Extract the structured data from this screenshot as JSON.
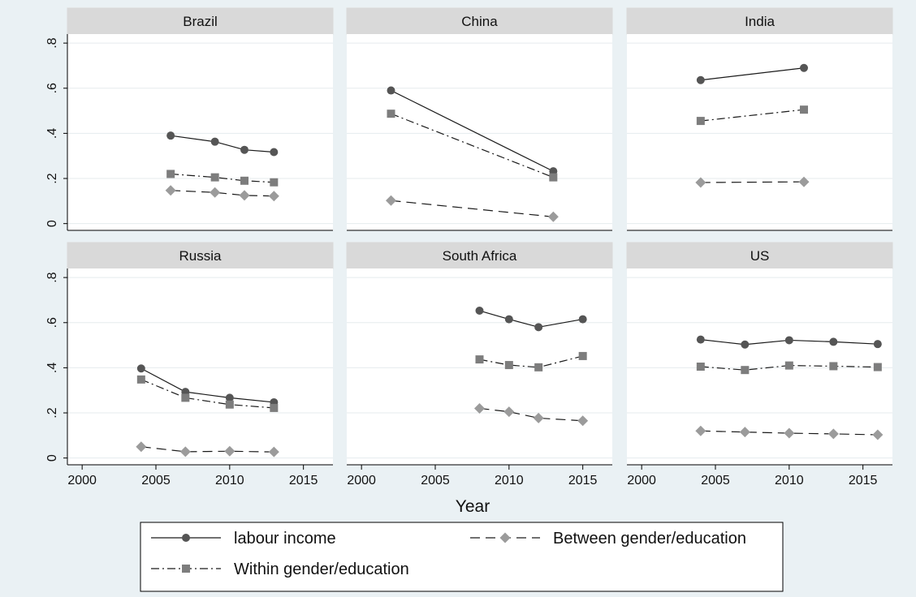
{
  "chart_data": {
    "type": "line",
    "xlabel": "Year",
    "ylabel": "",
    "xlim": [
      1999,
      2017
    ],
    "ylim": [
      -0.03,
      0.84
    ],
    "xticks": [
      "2000",
      "2005",
      "2010",
      "2015"
    ],
    "yticks": [
      "0",
      ".2",
      ".4",
      ".6",
      ".8"
    ],
    "grid": true,
    "legend_position": "bottom",
    "legend": [
      {
        "series": "labour",
        "label": "labour income"
      },
      {
        "series": "between",
        "label": "Between gender/education"
      },
      {
        "series": "within",
        "label": "Within gender/education"
      }
    ],
    "styles": {
      "labour": {
        "color": "#555555",
        "dash": "",
        "marker": "circle"
      },
      "within": {
        "color": "#7d7d7d",
        "dash": "10,4,2,4",
        "marker": "square"
      },
      "between": {
        "color": "#9b9b9b",
        "dash": "12,7",
        "marker": "diamond"
      }
    },
    "panels": [
      {
        "title": "Brazil",
        "series": [
          {
            "key": "labour",
            "x": [
              2006,
              2009,
              2011,
              2013
            ],
            "values": [
              0.39,
              0.363,
              0.327,
              0.317
            ]
          },
          {
            "key": "within",
            "x": [
              2006,
              2009,
              2011,
              2013
            ],
            "values": [
              0.22,
              0.205,
              0.19,
              0.183
            ]
          },
          {
            "key": "between",
            "x": [
              2006,
              2009,
              2011,
              2013
            ],
            "values": [
              0.147,
              0.138,
              0.125,
              0.122
            ]
          }
        ]
      },
      {
        "title": "China",
        "series": [
          {
            "key": "labour",
            "x": [
              2002,
              2013
            ],
            "values": [
              0.59,
              0.232
            ]
          },
          {
            "key": "within",
            "x": [
              2002,
              2013
            ],
            "values": [
              0.487,
              0.205
            ]
          },
          {
            "key": "between",
            "x": [
              2002,
              2013
            ],
            "values": [
              0.102,
              0.03
            ]
          }
        ]
      },
      {
        "title": "India",
        "series": [
          {
            "key": "labour",
            "x": [
              2004,
              2011
            ],
            "values": [
              0.636,
              0.69
            ]
          },
          {
            "key": "within",
            "x": [
              2004,
              2011
            ],
            "values": [
              0.455,
              0.505
            ]
          },
          {
            "key": "between",
            "x": [
              2004,
              2011
            ],
            "values": [
              0.182,
              0.185
            ]
          }
        ]
      },
      {
        "title": "Russia",
        "series": [
          {
            "key": "labour",
            "x": [
              2004,
              2007,
              2010,
              2013
            ],
            "values": [
              0.397,
              0.293,
              0.267,
              0.247
            ]
          },
          {
            "key": "within",
            "x": [
              2004,
              2007,
              2010,
              2013
            ],
            "values": [
              0.348,
              0.267,
              0.237,
              0.222
            ]
          },
          {
            "key": "between",
            "x": [
              2004,
              2007,
              2010,
              2013
            ],
            "values": [
              0.05,
              0.028,
              0.03,
              0.027
            ]
          }
        ]
      },
      {
        "title": "South Africa",
        "series": [
          {
            "key": "labour",
            "x": [
              2008,
              2010,
              2012,
              2015
            ],
            "values": [
              0.653,
              0.615,
              0.58,
              0.615
            ]
          },
          {
            "key": "within",
            "x": [
              2008,
              2010,
              2012,
              2015
            ],
            "values": [
              0.437,
              0.412,
              0.402,
              0.452
            ]
          },
          {
            "key": "between",
            "x": [
              2008,
              2010,
              2012,
              2015
            ],
            "values": [
              0.22,
              0.205,
              0.177,
              0.165
            ]
          }
        ]
      },
      {
        "title": "US",
        "series": [
          {
            "key": "labour",
            "x": [
              2004,
              2007,
              2010,
              2013,
              2016
            ],
            "values": [
              0.525,
              0.503,
              0.522,
              0.515,
              0.505
            ]
          },
          {
            "key": "within",
            "x": [
              2004,
              2007,
              2010,
              2013,
              2016
            ],
            "values": [
              0.405,
              0.39,
              0.41,
              0.407,
              0.403
            ]
          },
          {
            "key": "between",
            "x": [
              2004,
              2007,
              2010,
              2013,
              2016
            ],
            "values": [
              0.12,
              0.115,
              0.11,
              0.107,
              0.103
            ]
          }
        ]
      }
    ]
  }
}
